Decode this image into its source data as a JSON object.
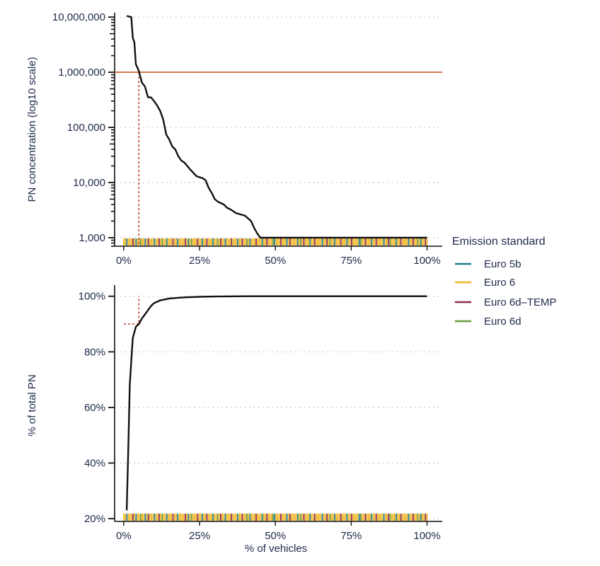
{
  "chart_data": [
    {
      "type": "line",
      "ylabel": "PN concentration (log10 scale)",
      "xlabel": "",
      "y_scale": "log10",
      "ylim": [
        700,
        12000000
      ],
      "xlim": [
        -3,
        105
      ],
      "x_ticks": [
        0,
        25,
        50,
        75,
        100
      ],
      "x_tick_labels": [
        "0%",
        "25%",
        "50%",
        "75%",
        "100%"
      ],
      "y_ticks": [
        1000,
        10000,
        100000,
        1000000,
        10000000
      ],
      "y_tick_labels": [
        "1,000",
        "10,000",
        "100,000",
        "1,000,000",
        "10,000,000"
      ],
      "grid": "horizontal-dotted",
      "threshold": {
        "y": 1000000,
        "color": "#d2572b"
      },
      "marker": {
        "x": 5,
        "color": "#c0392b"
      },
      "series": [
        {
          "color": "#111111",
          "x": [
            1,
            2.5,
            3,
            3.5,
            4,
            5,
            6,
            7,
            8,
            9,
            10,
            11,
            12,
            13,
            14,
            15,
            16,
            17,
            18,
            19,
            20,
            22,
            24,
            26,
            27,
            28,
            29,
            30,
            31,
            33,
            34,
            35,
            37,
            40,
            42,
            43,
            44,
            45,
            60,
            80,
            100
          ],
          "y": [
            10500000,
            10000000,
            4200000,
            3500000,
            1400000,
            1050000,
            650000,
            550000,
            350000,
            350000,
            300000,
            250000,
            200000,
            140000,
            75000,
            60000,
            45000,
            40000,
            30000,
            25000,
            23000,
            17000,
            13000,
            12000,
            11000,
            8000,
            6500,
            5000,
            4500,
            4000,
            3500,
            3300,
            2800,
            2500,
            2000,
            1500,
            1200,
            1000,
            1000,
            1000,
            1000
          ]
        }
      ]
    },
    {
      "type": "line",
      "ylabel": "% of total PN",
      "xlabel": "% of vehicles",
      "ylim": [
        19,
        104
      ],
      "xlim": [
        -3,
        105
      ],
      "x_ticks": [
        0,
        25,
        50,
        75,
        100
      ],
      "x_tick_labels": [
        "0%",
        "25%",
        "50%",
        "75%",
        "100%"
      ],
      "y_ticks": [
        20,
        40,
        60,
        80,
        100
      ],
      "y_tick_labels": [
        "20%",
        "40%",
        "60%",
        "80%",
        "100%"
      ],
      "grid": "horizontal-dotted",
      "marker": {
        "x": 5,
        "y": 90,
        "color": "#c0392b"
      },
      "series": [
        {
          "color": "#111111",
          "x": [
            1,
            1.5,
            2,
            2.5,
            3,
            4,
            5,
            6,
            7,
            8,
            9,
            10,
            12,
            15,
            20,
            25,
            30,
            40,
            50,
            60,
            80,
            100
          ],
          "y": [
            23,
            45,
            68,
            77,
            85,
            89,
            90,
            92,
            93.5,
            95,
            96.5,
            97.5,
            98.5,
            99.2,
            99.6,
            99.8,
            99.9,
            100,
            100,
            100,
            100,
            100
          ]
        }
      ]
    }
  ],
  "legend": {
    "title": "Emission standard",
    "placement": "right",
    "items": [
      {
        "label": "Euro 5b",
        "color": "#1f7f91"
      },
      {
        "label": "Euro 6",
        "color": "#f2b728"
      },
      {
        "label": "Euro 6d–TEMP",
        "color": "#8e2b52"
      },
      {
        "label": "Euro 6d",
        "color": "#6b9a3a"
      }
    ]
  },
  "rug": {
    "pattern": [
      1,
      1,
      0,
      1,
      1,
      1,
      2,
      1,
      0,
      1,
      1,
      3,
      1,
      1,
      0,
      1,
      2,
      1,
      1,
      1,
      0,
      1,
      1,
      2,
      1,
      3,
      1,
      1,
      0,
      1,
      1,
      1,
      2,
      1,
      1,
      0,
      1,
      1,
      1,
      1,
      2,
      1,
      0,
      1,
      3,
      1,
      1,
      1,
      2,
      1,
      1,
      0,
      1,
      1,
      2,
      1,
      1,
      1,
      0,
      1,
      1,
      3,
      1,
      2,
      1,
      1,
      0,
      1,
      1,
      1,
      2,
      1,
      1,
      1,
      0,
      1,
      1,
      2,
      1,
      1,
      3,
      1,
      0,
      1,
      1,
      1,
      2,
      1,
      1,
      1,
      0,
      1,
      1,
      2,
      1,
      1,
      1,
      3,
      0,
      1,
      1,
      1,
      2,
      1,
      1,
      1,
      0,
      1,
      2,
      1,
      1,
      1,
      1,
      0,
      1,
      3,
      1,
      2,
      1,
      1,
      1,
      0,
      1,
      1,
      2,
      1,
      1,
      1,
      1,
      0,
      1,
      1,
      2,
      1,
      3,
      1,
      1,
      0,
      1,
      1,
      1,
      2,
      1,
      1,
      1,
      0,
      1,
      1,
      2,
      1,
      1,
      1,
      1,
      0,
      3,
      1,
      1,
      2,
      1,
      1,
      1,
      0,
      1,
      1,
      2,
      1,
      1,
      1,
      1,
      0,
      1,
      1,
      2,
      3,
      1,
      1,
      1,
      0,
      1,
      1,
      2,
      1,
      1,
      1,
      1,
      0,
      1,
      1,
      2,
      1,
      1,
      3,
      1,
      0,
      1,
      1,
      2,
      1
    ]
  }
}
